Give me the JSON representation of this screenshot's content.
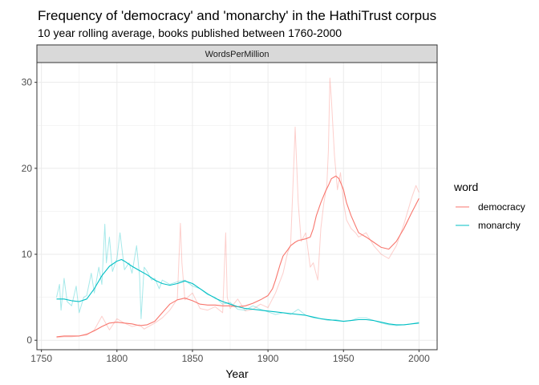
{
  "chart_data": {
    "type": "line",
    "title": "Frequency of 'democracy' and 'monarchy' in the HathiTrust corpus",
    "subtitle": "10 year rolling average, books published between 1760-2000",
    "facet_label": "WordsPerMillion",
    "xlabel": "Year",
    "ylabel": "",
    "xlim": [
      1747,
      2012
    ],
    "ylim": [
      -1.1,
      32.3
    ],
    "x_ticks": [
      1750,
      1800,
      1850,
      1900,
      1950,
      2000
    ],
    "y_ticks": [
      0,
      10,
      20,
      30
    ],
    "grid": true,
    "legend": {
      "title": "word",
      "position": "right",
      "entries": [
        "democracy",
        "monarchy"
      ]
    },
    "colors": {
      "democracy": "#f8766d",
      "monarchy": "#00bfc4"
    },
    "series": [
      {
        "name": "democracy",
        "role": "rolling_average",
        "x": [
          1760,
          1765,
          1770,
          1775,
          1780,
          1785,
          1790,
          1795,
          1800,
          1805,
          1810,
          1815,
          1820,
          1825,
          1830,
          1835,
          1840,
          1845,
          1850,
          1855,
          1860,
          1865,
          1870,
          1875,
          1880,
          1885,
          1890,
          1895,
          1900,
          1903,
          1905,
          1908,
          1910,
          1913,
          1915,
          1918,
          1920,
          1925,
          1928,
          1930,
          1932,
          1935,
          1938,
          1940,
          1942,
          1945,
          1947,
          1950,
          1952,
          1955,
          1958,
          1960,
          1965,
          1970,
          1975,
          1980,
          1985,
          1990,
          1995,
          2000
        ],
        "values": [
          0.4,
          0.5,
          0.5,
          0.5,
          0.7,
          1.1,
          1.6,
          2.0,
          2.1,
          2.0,
          1.9,
          1.7,
          1.8,
          2.2,
          3.2,
          4.2,
          4.7,
          4.9,
          4.6,
          4.2,
          4.1,
          4.1,
          4.0,
          4.0,
          3.9,
          4.0,
          4.3,
          4.7,
          5.2,
          6.0,
          7.0,
          8.8,
          9.8,
          10.5,
          11.0,
          11.4,
          11.6,
          11.8,
          12.0,
          13.0,
          14.5,
          16.0,
          17.3,
          18.0,
          18.8,
          19.1,
          18.8,
          17.5,
          16.0,
          14.5,
          13.3,
          12.5,
          12.0,
          11.4,
          10.8,
          10.6,
          11.5,
          13.0,
          14.8,
          16.5
        ]
      },
      {
        "name": "democracy",
        "role": "annual",
        "x": [
          1760,
          1765,
          1770,
          1775,
          1780,
          1785,
          1790,
          1795,
          1800,
          1805,
          1810,
          1815,
          1818,
          1820,
          1825,
          1830,
          1835,
          1840,
          1842,
          1843,
          1845,
          1850,
          1855,
          1860,
          1865,
          1870,
          1872,
          1873,
          1875,
          1880,
          1885,
          1890,
          1895,
          1900,
          1905,
          1910,
          1913,
          1915,
          1917,
          1918,
          1920,
          1922,
          1925,
          1928,
          1930,
          1933,
          1935,
          1937,
          1939,
          1940,
          1941,
          1942,
          1944,
          1946,
          1948,
          1950,
          1952,
          1955,
          1958,
          1960,
          1965,
          1970,
          1975,
          1980,
          1985,
          1990,
          1995,
          1998,
          2000
        ],
        "values": [
          0.3,
          0.4,
          0.4,
          0.5,
          0.6,
          1.2,
          2.8,
          1.2,
          2.5,
          2.0,
          1.6,
          1.8,
          1.3,
          1.5,
          2.0,
          2.6,
          3.5,
          4.8,
          13.6,
          9.0,
          4.7,
          5.5,
          3.7,
          3.5,
          3.9,
          3.2,
          12.5,
          5.0,
          3.7,
          4.8,
          3.4,
          3.6,
          4.2,
          3.8,
          5.5,
          7.8,
          10.2,
          11.0,
          20.0,
          24.8,
          16.0,
          11.5,
          12.5,
          8.5,
          9.0,
          7.0,
          13.0,
          16.0,
          18.0,
          22.0,
          30.5,
          28.0,
          21.5,
          17.5,
          19.5,
          16.0,
          14.0,
          13.0,
          12.5,
          12.0,
          12.5,
          11.0,
          10.0,
          9.5,
          11.0,
          13.5,
          16.5,
          18.0,
          17.2
        ]
      },
      {
        "name": "monarchy",
        "role": "rolling_average",
        "x": [
          1760,
          1765,
          1770,
          1775,
          1780,
          1785,
          1790,
          1795,
          1800,
          1803,
          1805,
          1810,
          1815,
          1820,
          1825,
          1830,
          1835,
          1840,
          1845,
          1850,
          1855,
          1860,
          1865,
          1870,
          1875,
          1880,
          1885,
          1890,
          1895,
          1900,
          1905,
          1910,
          1915,
          1920,
          1925,
          1930,
          1935,
          1940,
          1945,
          1950,
          1955,
          1960,
          1965,
          1970,
          1975,
          1980,
          1985,
          1990,
          1995,
          2000
        ],
        "values": [
          4.8,
          4.8,
          4.6,
          4.5,
          4.8,
          6.0,
          7.5,
          8.6,
          9.2,
          9.4,
          9.2,
          8.6,
          8.1,
          7.6,
          7.0,
          6.6,
          6.4,
          6.6,
          6.9,
          6.6,
          6.0,
          5.4,
          4.9,
          4.5,
          4.2,
          3.9,
          3.7,
          3.6,
          3.5,
          3.4,
          3.3,
          3.2,
          3.1,
          3.0,
          2.9,
          2.7,
          2.5,
          2.4,
          2.3,
          2.2,
          2.3,
          2.4,
          2.4,
          2.3,
          2.1,
          1.9,
          1.8,
          1.8,
          1.9,
          2.0
        ]
      },
      {
        "name": "monarchy",
        "role": "annual",
        "x": [
          1760,
          1762,
          1763,
          1765,
          1767,
          1770,
          1773,
          1775,
          1778,
          1780,
          1783,
          1785,
          1788,
          1790,
          1792,
          1793,
          1795,
          1797,
          1800,
          1802,
          1805,
          1808,
          1810,
          1813,
          1815,
          1816,
          1818,
          1820,
          1823,
          1825,
          1828,
          1830,
          1835,
          1840,
          1845,
          1850,
          1855,
          1860,
          1865,
          1870,
          1875,
          1880,
          1885,
          1890,
          1895,
          1900,
          1905,
          1910,
          1915,
          1920,
          1925,
          1930,
          1935,
          1940,
          1945,
          1950,
          1955,
          1960,
          1965,
          1970,
          1975,
          1980,
          1985,
          1990,
          1995,
          2000
        ],
        "values": [
          5.0,
          6.5,
          3.5,
          7.2,
          4.5,
          4.0,
          6.3,
          3.2,
          5.0,
          5.2,
          7.8,
          5.5,
          8.5,
          6.5,
          13.5,
          9.0,
          12.0,
          8.0,
          9.5,
          12.5,
          8.2,
          9.0,
          7.8,
          11.0,
          7.5,
          2.5,
          8.5,
          8.0,
          7.0,
          7.2,
          6.0,
          7.0,
          6.5,
          6.8,
          7.0,
          6.3,
          6.0,
          5.3,
          5.0,
          4.2,
          4.4,
          3.6,
          3.5,
          4.0,
          3.6,
          3.3,
          3.0,
          3.2,
          3.0,
          3.6,
          2.9,
          2.6,
          2.5,
          2.3,
          2.4,
          2.2,
          2.3,
          2.6,
          2.6,
          2.3,
          2.0,
          1.8,
          1.7,
          1.8,
          1.9,
          2.1
        ]
      }
    ]
  }
}
